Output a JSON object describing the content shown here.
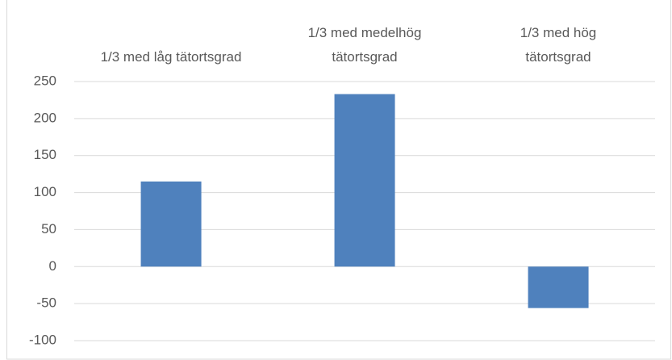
{
  "chart_data": {
    "type": "bar",
    "categories": [
      "1/3 med låg tätortsgrad",
      "1/3 med medelhög tätortsgrad",
      "1/3 med hög tätortsgrad"
    ],
    "values": [
      115,
      233,
      -56
    ],
    "color": "#4f81bd",
    "ylim": [
      -100,
      250
    ],
    "yticks": [
      -100,
      -50,
      0,
      50,
      100,
      150,
      200,
      250
    ],
    "grid": true
  }
}
